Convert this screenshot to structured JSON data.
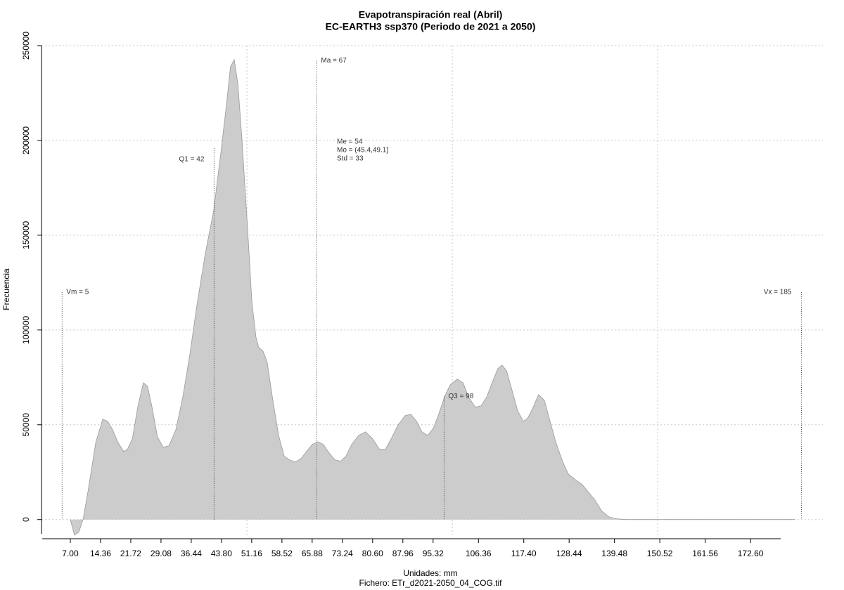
{
  "chart_data": {
    "type": "area",
    "title": "Evapotranspiración real (Abril)",
    "subtitle": "EC-EARTH3 ssp370 (Periodo de 2021 a 2050)",
    "x_label": "Unidades: mm",
    "caption": "Fichero: ETr_d2021-2050_04_COG.tif",
    "y_label": "Frecuencia",
    "color": "#cccccc",
    "line_color": "#999999",
    "grid": true,
    "x": [
      7.0,
      8.0,
      9.06,
      10.1,
      11.3,
      13.2,
      14.9,
      16.1,
      17.3,
      18.6,
      20.0,
      20.9,
      22.1,
      23.4,
      24.8,
      25.8,
      26.9,
      28.2,
      29.6,
      31.0,
      32.7,
      34.4,
      36.1,
      37.8,
      39.9,
      41.9,
      43.6,
      45.0,
      46.0,
      46.9,
      47.8,
      48.8,
      50.2,
      51.2,
      52.2,
      52.9,
      53.9,
      54.9,
      56.3,
      57.7,
      59.1,
      60.4,
      61.8,
      63.2,
      64.5,
      65.9,
      67.3,
      68.6,
      70.0,
      71.4,
      72.8,
      74.1,
      75.5,
      77.2,
      78.9,
      80.6,
      82.3,
      83.7,
      85.1,
      86.8,
      88.5,
      89.9,
      91.3,
      92.6,
      94.0,
      95.4,
      96.7,
      98.1,
      99.5,
      101.2,
      102.6,
      103.9,
      105.6,
      107.0,
      108.4,
      109.7,
      111.1,
      112.1,
      113.2,
      114.5,
      115.9,
      117.3,
      118.3,
      119.7,
      121.0,
      122.4,
      123.8,
      125.2,
      126.9,
      128.2,
      129.9,
      131.6,
      133.0,
      134.7,
      136.4,
      138.1,
      139.9,
      142.3,
      145.7,
      183.4
    ],
    "values": [
      0,
      -8148,
      -6667,
      0,
      14815,
      40741,
      52963,
      51852,
      47407,
      40741,
      35926,
      37037,
      42593,
      59259,
      72222,
      70370,
      59259,
      43704,
      38148,
      38889,
      47407,
      64815,
      87037,
      112963,
      140741,
      162963,
      192593,
      218519,
      238889,
      242593,
      229630,
      200000,
      151852,
      114815,
      96296,
      90741,
      88889,
      83333,
      62963,
      44444,
      33333,
      31481,
      30370,
      32222,
      35926,
      39630,
      41111,
      39630,
      35185,
      31481,
      30741,
      33333,
      39630,
      44444,
      46296,
      42593,
      37037,
      37037,
      42593,
      50000,
      54815,
      55556,
      51852,
      46296,
      44444,
      48148,
      55556,
      64815,
      71111,
      74074,
      72222,
      64815,
      59259,
      60000,
      64815,
      72222,
      79630,
      81481,
      78519,
      68519,
      57407,
      51852,
      53333,
      59259,
      65926,
      62963,
      51852,
      40741,
      30370,
      24074,
      21111,
      18519,
      14815,
      10370,
      4444,
      1481,
      370,
      0,
      0,
      0
    ],
    "xlim": [
      0,
      190
    ],
    "ylim": [
      -9000,
      250000
    ],
    "yticks": [
      0,
      50000,
      100000,
      150000,
      200000,
      250000
    ],
    "xticks": [
      {
        "value": 7,
        "label": "7.00"
      },
      14.36,
      21.72,
      29.08,
      36.44,
      {
        "value": 43.8,
        "label": "43.80"
      },
      51.16,
      58.52,
      65.88,
      73.24,
      {
        "value": 80.6,
        "label": "80.60"
      },
      87.96,
      95.32,
      106.36,
      {
        "value": 117.4,
        "label": "117.40"
      },
      128.44,
      139.48,
      150.52,
      161.56,
      {
        "value": 172.6,
        "label": "172.60"
      }
    ],
    "xgrid": [
      50,
      100,
      150
    ],
    "annotations": [
      {
        "label": "Vm = 5",
        "x": 5,
        "y": 120000
      },
      {
        "label": "Q1 = 42",
        "x": 42,
        "y": 196000
      },
      {
        "label": "Ma = 67",
        "x": 67,
        "y": 242000
      },
      {
        "label": "Q3 = 98",
        "x": 98,
        "y": 65000
      },
      {
        "label": "Vx = 185",
        "x": 185,
        "y": 120000
      }
    ],
    "stats": [
      "Me = 54",
      "Mo = (45.4,49.1]",
      "Std = 33"
    ]
  }
}
